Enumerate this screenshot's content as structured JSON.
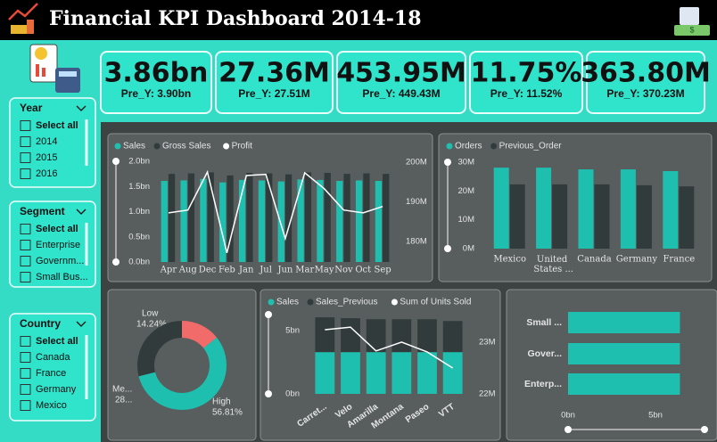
{
  "header": {
    "title": "Financial KPI Dashboard 2014-18"
  },
  "kpis": [
    {
      "value": "3.86bn",
      "previous": "Pre_Y: 3.90bn"
    },
    {
      "value": "27.36M",
      "previous": "Pre_Y: 27.51M"
    },
    {
      "value": "453.95M",
      "previous": "Pre_Y: 449.43M"
    },
    {
      "value": "11.75%",
      "previous": "Pre_Y: 11.52%"
    },
    {
      "value": "363.80M",
      "previous": "Pre_Y: 370.23M"
    }
  ],
  "slicers": [
    {
      "title": "Year",
      "items": [
        "Select all",
        "2014",
        "2015",
        "2016"
      ]
    },
    {
      "title": "Segment",
      "items": [
        "Select all",
        "Enterprise",
        "Governm...",
        "Small Bus..."
      ]
    },
    {
      "title": "Country",
      "items": [
        "Select all",
        "Canada",
        "France",
        "Germany",
        "Mexico"
      ]
    }
  ],
  "chart_data": [
    {
      "type": "combo",
      "categories": [
        "Apr",
        "Aug",
        "Dec",
        "Feb",
        "Jan",
        "Jul",
        "Jun",
        "Mar",
        "May",
        "Nov",
        "Oct",
        "Sep"
      ],
      "series": [
        {
          "name": "Sales",
          "color": "#1fbfb0",
          "values": [
            1.61,
            1.62,
            1.65,
            1.58,
            1.63,
            1.62,
            1.6,
            1.64,
            1.63,
            1.61,
            1.62,
            1.61
          ]
        },
        {
          "name": "Gross Sales",
          "color": "#323b3b",
          "values": [
            1.75,
            1.76,
            1.78,
            1.72,
            1.77,
            1.76,
            1.74,
            1.78,
            1.77,
            1.75,
            1.76,
            1.75
          ]
        },
        {
          "name": "Profit",
          "color": "#ffffff",
          "axis": "y2",
          "values": [
            187.2,
            187.9,
            197.5,
            177.1,
            196.6,
            196.9,
            180.7,
            197.3,
            193.3,
            187.9,
            187.2,
            188.8
          ]
        }
      ],
      "ylim": [
        0,
        2.0
      ],
      "yticks": [
        {
          "value": 0,
          "label": "0.0bn"
        },
        {
          "value": 0.5,
          "label": "0.5bn"
        },
        {
          "value": 1.0,
          "label": "1.0bn"
        },
        {
          "value": 1.5,
          "label": "1.5bn"
        },
        {
          "value": 2.0,
          "label": "2.0bn"
        }
      ],
      "y2lim": [
        174.8,
        200.2
      ],
      "y2ticks": [
        {
          "value": 180,
          "label": "180M"
        },
        {
          "value": 190,
          "label": "190M"
        },
        {
          "value": 200,
          "label": "200M"
        }
      ]
    },
    {
      "type": "combo",
      "categories": [
        "Mexico",
        "United States ...",
        "Canada",
        "Germany",
        "France"
      ],
      "series": [
        {
          "name": "Orders",
          "color": "#1fbfb0",
          "values": [
            28.1,
            28.1,
            27.5,
            27.5,
            26.9
          ]
        },
        {
          "name": "Previous_Order",
          "color": "#323b3b",
          "values": [
            22.3,
            22.3,
            22.3,
            22.0,
            21.6
          ]
        }
      ],
      "ylim": [
        0,
        30
      ],
      "yticks": [
        {
          "value": 0,
          "label": "0M"
        },
        {
          "value": 10,
          "label": "10M"
        },
        {
          "value": 20,
          "label": "20M"
        },
        {
          "value": 30,
          "label": "30M"
        }
      ]
    },
    {
      "type": "pie",
      "categories": [
        "Low",
        "High",
        "Me..."
      ],
      "values": [
        14.24,
        56.81,
        28.95
      ],
      "value_labels": [
        "14.24%",
        "56.81%",
        "28..."
      ],
      "colors": [
        "#f26b6b",
        "#1fbfb0",
        "#323b3b"
      ]
    },
    {
      "type": "combo",
      "stacked": true,
      "categories": [
        "Carret...",
        "Velo",
        "Amarilla",
        "Montana",
        "Paseo",
        "VTT"
      ],
      "series": [
        {
          "name": "Sales",
          "color": "#1fbfb0",
          "values": [
            3.3,
            3.3,
            3.3,
            3.3,
            3.3,
            3.3
          ]
        },
        {
          "name": "Sales_Previous",
          "color": "#323b3b",
          "values": [
            2.75,
            2.68,
            2.6,
            2.6,
            2.6,
            2.46
          ]
        },
        {
          "name": "Sum of Units Sold",
          "color": "#ffffff",
          "axis": "y2",
          "values": [
            23.24,
            23.29,
            22.83,
            23.0,
            22.81,
            22.5
          ]
        }
      ],
      "ylim": [
        0,
        6.5
      ],
      "yticks": [
        {
          "value": 0,
          "label": "0bn"
        },
        {
          "value": 5,
          "label": "5bn"
        }
      ],
      "y2lim": [
        22,
        23.59
      ],
      "y2ticks": [
        {
          "value": 22,
          "label": "22M"
        },
        {
          "value": 23,
          "label": "23M"
        }
      ]
    },
    {
      "type": "barh",
      "categories": [
        "Small ...",
        "Gover...",
        "Enterp..."
      ],
      "values": [
        6.4,
        6.4,
        6.4
      ],
      "color": "#1fbfb0",
      "xlim": [
        0,
        6.5
      ],
      "xticks": [
        {
          "value": 0,
          "label": "0bn"
        },
        {
          "value": 5,
          "label": "5bn"
        }
      ]
    }
  ]
}
